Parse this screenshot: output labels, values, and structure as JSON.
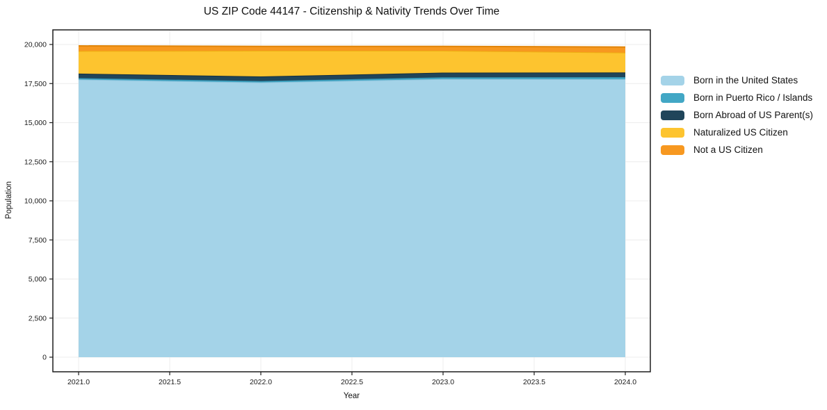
{
  "chart_data": {
    "type": "area",
    "stacked": true,
    "title": "US ZIP Code 44147 - Citizenship & Nativity Trends Over Time",
    "xlabel": "Year",
    "ylabel": "Population",
    "x": [
      2021,
      2022,
      2023,
      2024
    ],
    "series": [
      {
        "name": "Born in the United States",
        "color": "#a4d3e8",
        "edge_color": "#8ec3dc",
        "values": [
          17760,
          17570,
          17790,
          17780
        ]
      },
      {
        "name": "Born in Puerto Rico / Islands",
        "color": "#42a7c5",
        "edge_color": "#3392b0",
        "values": [
          90,
          90,
          110,
          130
        ]
      },
      {
        "name": "Born Abroad of US Parent(s)",
        "color": "#20455a",
        "edge_color": "#162f3e",
        "values": [
          290,
          295,
          300,
          300
        ]
      },
      {
        "name": "Naturalized US Citizen",
        "color": "#fdc42f",
        "edge_color": "#eeb013",
        "values": [
          1440,
          1645,
          1400,
          1270
        ]
      },
      {
        "name": "Not a US Citizen",
        "color": "#f79820",
        "edge_color": "#e1850a",
        "values": [
          330,
          280,
          280,
          355
        ]
      }
    ],
    "totals": [
      19910,
      19880,
      19880,
      19835
    ],
    "xlim": [
      2020.86,
      2024.14
    ],
    "ylim": [
      0,
      20900
    ],
    "x_ticks": {
      "values": [
        2021.0,
        2021.5,
        2022.0,
        2022.5,
        2023.0,
        2023.5,
        2024.0
      ],
      "labels": [
        "2021.0",
        "2021.5",
        "2022.0",
        "2022.5",
        "2023.0",
        "2023.5",
        "2024.0"
      ]
    },
    "y_ticks": {
      "values": [
        0,
        2500,
        5000,
        7500,
        10000,
        12500,
        15000,
        17500,
        20000
      ],
      "labels": [
        "0",
        "2,500",
        "5,000",
        "7,500",
        "10,000",
        "12,500",
        "15,000",
        "17,500",
        "20,000"
      ]
    },
    "grid": true,
    "legend_position": "right-outside",
    "colors": {
      "spine": "#1c1c1c",
      "grid": "#ececec",
      "background": "#ffffff",
      "text": "#111111"
    }
  }
}
